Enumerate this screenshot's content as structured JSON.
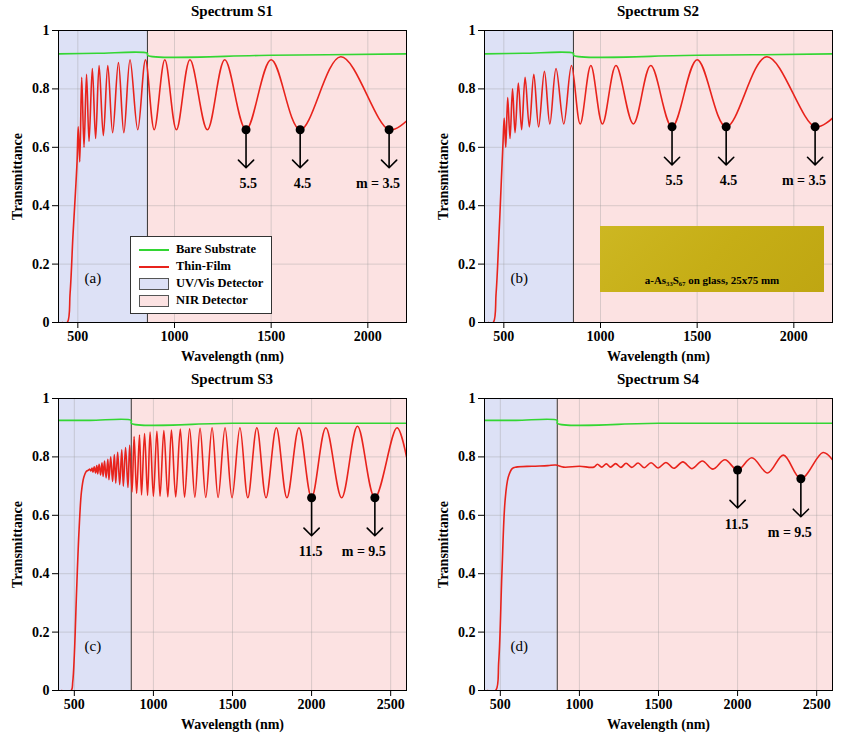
{
  "chart_data": [
    {
      "type": "line",
      "title": "Spectrum S1",
      "panel_label": "(a)",
      "x_label": "Wavelength (nm)",
      "y_label": "Transmittance",
      "xlim": [
        400,
        2200
      ],
      "xticks": [
        500,
        1000,
        1500,
        2000
      ],
      "ylim": [
        0,
        1
      ],
      "yticks": [
        0,
        0.2,
        0.4,
        0.6,
        0.8,
        1
      ],
      "grid": true,
      "legend": "bottom",
      "series": [
        {
          "name": "Bare Substrate",
          "color": "#33d633",
          "x": [
            400,
            600,
            860,
            861,
            1500,
            2200
          ],
          "values": [
            0.92,
            0.922,
            0.922,
            0.915,
            0.915,
            0.92
          ]
        },
        {
          "name": "Thin-Film",
          "color": "#e8231c",
          "x": [
            420,
            445,
            460,
            475,
            488,
            496,
            502,
            510,
            520,
            532,
            545,
            558,
            575,
            592,
            610,
            632,
            655,
            680,
            710,
            738,
            770,
            810,
            850,
            895,
            950,
            1010,
            1080,
            1170,
            1260,
            1370,
            1500,
            1650,
            1860,
            2110,
            2200
          ],
          "values": [
            0,
            0,
            0.1,
            0.3,
            0.45,
            0.55,
            0.67,
            0.55,
            0.84,
            0.6,
            0.85,
            0.62,
            0.87,
            0.63,
            0.88,
            0.64,
            0.88,
            0.65,
            0.89,
            0.65,
            0.9,
            0.66,
            0.9,
            0.66,
            0.9,
            0.66,
            0.9,
            0.66,
            0.9,
            0.66,
            0.9,
            0.66,
            0.91,
            0.66,
            0.69
          ]
        }
      ],
      "regions": [
        {
          "name": "UV/Vis Detector",
          "x": [
            400,
            860
          ],
          "color": "#dde1f6"
        },
        {
          "name": "NIR Detector",
          "x": [
            860,
            2200
          ],
          "color": "#fce2e2"
        }
      ],
      "annotations": [
        {
          "x": 1370,
          "y": 0.66,
          "label": "5.5"
        },
        {
          "x": 1650,
          "y": 0.66,
          "label": "4.5"
        },
        {
          "x": 2110,
          "y": 0.66,
          "label": "m = 3.5"
        }
      ]
    },
    {
      "type": "line",
      "title": "Spectrum S2",
      "panel_label": "(b)",
      "x_label": "Wavelength (nm)",
      "y_label": "Transmittance",
      "xlim": [
        400,
        2200
      ],
      "xticks": [
        500,
        1000,
        1500,
        2000
      ],
      "ylim": [
        0,
        1
      ],
      "yticks": [
        0,
        0.2,
        0.4,
        0.6,
        0.8,
        1
      ],
      "grid": true,
      "series": [
        {
          "name": "Bare Substrate",
          "color": "#33d633",
          "x": [
            400,
            600,
            860,
            861,
            1500,
            2200
          ],
          "values": [
            0.92,
            0.922,
            0.922,
            0.915,
            0.915,
            0.92
          ]
        },
        {
          "name": "Thin-Film",
          "color": "#e8231c",
          "x": [
            420,
            445,
            460,
            475,
            488,
            496,
            502,
            510,
            520,
            532,
            545,
            558,
            575,
            592,
            610,
            632,
            655,
            680,
            710,
            738,
            770,
            810,
            850,
            895,
            950,
            1010,
            1080,
            1170,
            1260,
            1370,
            1500,
            1650,
            1860,
            2110,
            2200
          ],
          "values": [
            0,
            0,
            0.1,
            0.3,
            0.5,
            0.62,
            0.7,
            0.6,
            0.77,
            0.63,
            0.8,
            0.65,
            0.82,
            0.66,
            0.84,
            0.67,
            0.85,
            0.67,
            0.86,
            0.68,
            0.87,
            0.68,
            0.88,
            0.68,
            0.88,
            0.68,
            0.88,
            0.68,
            0.88,
            0.67,
            0.9,
            0.67,
            0.91,
            0.67,
            0.7
          ]
        }
      ],
      "regions": [
        {
          "x": [
            400,
            860
          ],
          "color": "#dde1f6"
        },
        {
          "x": [
            860,
            2200
          ],
          "color": "#fce2e2"
        }
      ],
      "annotations": [
        {
          "x": 1370,
          "y": 0.67,
          "label": "5.5"
        },
        {
          "x": 1650,
          "y": 0.67,
          "label": "4.5"
        },
        {
          "x": 2110,
          "y": 0.67,
          "label": "m = 3.5"
        }
      ],
      "inset": {
        "text": "a-As₃₃S₆₇ on glass, 25x75 mm"
      }
    },
    {
      "type": "line",
      "title": "Spectrum S3",
      "panel_label": "(c)",
      "x_label": "Wavelength (nm)",
      "y_label": "Transmittance",
      "xlim": [
        400,
        2600
      ],
      "xticks": [
        500,
        1000,
        1500,
        2000,
        2500
      ],
      "ylim": [
        0,
        1
      ],
      "yticks": [
        0,
        0.2,
        0.4,
        0.6,
        0.8,
        1
      ],
      "grid": true,
      "series": [
        {
          "name": "Bare Substrate",
          "color": "#33d633",
          "x": [
            400,
            600,
            860,
            861,
            1500,
            2200,
            2600
          ],
          "values": [
            0.925,
            0.925,
            0.925,
            0.915,
            0.915,
            0.915,
            0.915
          ]
        },
        {
          "name": "Thin-Film",
          "color": "#e8231c",
          "x": [
            420,
            480,
            490,
            500,
            515,
            530,
            545,
            560,
            575,
            590,
            598,
            605,
            612,
            618,
            626,
            634,
            642,
            648,
            657,
            666,
            675,
            682,
            691,
            701,
            712,
            719,
            730,
            742,
            753,
            762,
            774,
            787,
            800,
            810,
            824,
            839,
            850,
            865,
            878,
            894,
            912,
            925,
            944,
            963,
            979,
            1000,
            1022,
            1042,
            1066,
            1091,
            1114,
            1141,
            1170,
            1197,
            1229,
            1262,
            1295,
            1331,
            1371,
            1409,
            1453,
            1497,
            1547,
            1597,
            1654,
            1712,
            1777,
            1844,
            1920,
            2000,
            2090,
            2190,
            2290,
            2400,
            2540,
            2600
          ],
          "values": [
            0,
            0,
            0.03,
            0.12,
            0.35,
            0.55,
            0.68,
            0.73,
            0.75,
            0.755,
            0.758,
            0.752,
            0.762,
            0.748,
            0.766,
            0.745,
            0.77,
            0.742,
            0.775,
            0.738,
            0.78,
            0.733,
            0.786,
            0.728,
            0.792,
            0.722,
            0.8,
            0.716,
            0.808,
            0.71,
            0.816,
            0.705,
            0.824,
            0.7,
            0.832,
            0.695,
            0.84,
            0.68,
            0.87,
            0.675,
            0.875,
            0.67,
            0.88,
            0.668,
            0.885,
            0.665,
            0.888,
            0.665,
            0.89,
            0.663,
            0.892,
            0.663,
            0.895,
            0.662,
            0.896,
            0.662,
            0.898,
            0.661,
            0.9,
            0.661,
            0.9,
            0.66,
            0.9,
            0.66,
            0.9,
            0.66,
            0.9,
            0.66,
            0.9,
            0.66,
            0.9,
            0.66,
            0.905,
            0.66,
            0.9,
            0.8
          ]
        }
      ],
      "regions": [
        {
          "x": [
            400,
            860
          ],
          "color": "#dde1f6"
        },
        {
          "x": [
            860,
            2600
          ],
          "color": "#fce2e2"
        }
      ],
      "annotations": [
        {
          "x": 2000,
          "y": 0.66,
          "label": "11.5"
        },
        {
          "x": 2400,
          "y": 0.66,
          "label": "m = 9.5"
        }
      ]
    },
    {
      "type": "line",
      "title": "Spectrum S4",
      "panel_label": "(d)",
      "x_label": "Wavelength (nm)",
      "y_label": "Transmittance",
      "xlim": [
        400,
        2600
      ],
      "xticks": [
        500,
        1000,
        1500,
        2000,
        2500
      ],
      "ylim": [
        0,
        1
      ],
      "yticks": [
        0,
        0.2,
        0.4,
        0.6,
        0.8,
        1
      ],
      "grid": true,
      "series": [
        {
          "name": "Bare Substrate",
          "color": "#33d633",
          "x": [
            400,
            600,
            860,
            861,
            1500,
            2200,
            2600
          ],
          "values": [
            0.925,
            0.925,
            0.925,
            0.915,
            0.915,
            0.915,
            0.915
          ]
        },
        {
          "name": "Thin-Film",
          "color": "#e8231c",
          "x": [
            420,
            470,
            490,
            510,
            530,
            550,
            575,
            600,
            700,
            800,
            850,
            900,
            1000,
            1091,
            1114,
            1141,
            1170,
            1197,
            1229,
            1262,
            1295,
            1331,
            1371,
            1409,
            1453,
            1497,
            1547,
            1597,
            1654,
            1712,
            1777,
            1844,
            1920,
            2000,
            2090,
            2190,
            2290,
            2400,
            2540,
            2600
          ],
          "values": [
            0,
            0,
            0.1,
            0.4,
            0.65,
            0.73,
            0.76,
            0.765,
            0.768,
            0.77,
            0.772,
            0.765,
            0.768,
            0.765,
            0.775,
            0.765,
            0.776,
            0.765,
            0.777,
            0.764,
            0.778,
            0.764,
            0.779,
            0.763,
            0.78,
            0.762,
            0.781,
            0.761,
            0.783,
            0.76,
            0.786,
            0.758,
            0.79,
            0.755,
            0.797,
            0.745,
            0.806,
            0.725,
            0.815,
            0.79
          ]
        }
      ],
      "regions": [
        {
          "x": [
            400,
            860
          ],
          "color": "#dde1f6"
        },
        {
          "x": [
            860,
            2600
          ],
          "color": "#fce2e2"
        }
      ],
      "annotations": [
        {
          "x": 2000,
          "y": 0.755,
          "label": "11.5"
        },
        {
          "x": 2400,
          "y": 0.725,
          "label": "m = 9.5"
        }
      ]
    }
  ]
}
